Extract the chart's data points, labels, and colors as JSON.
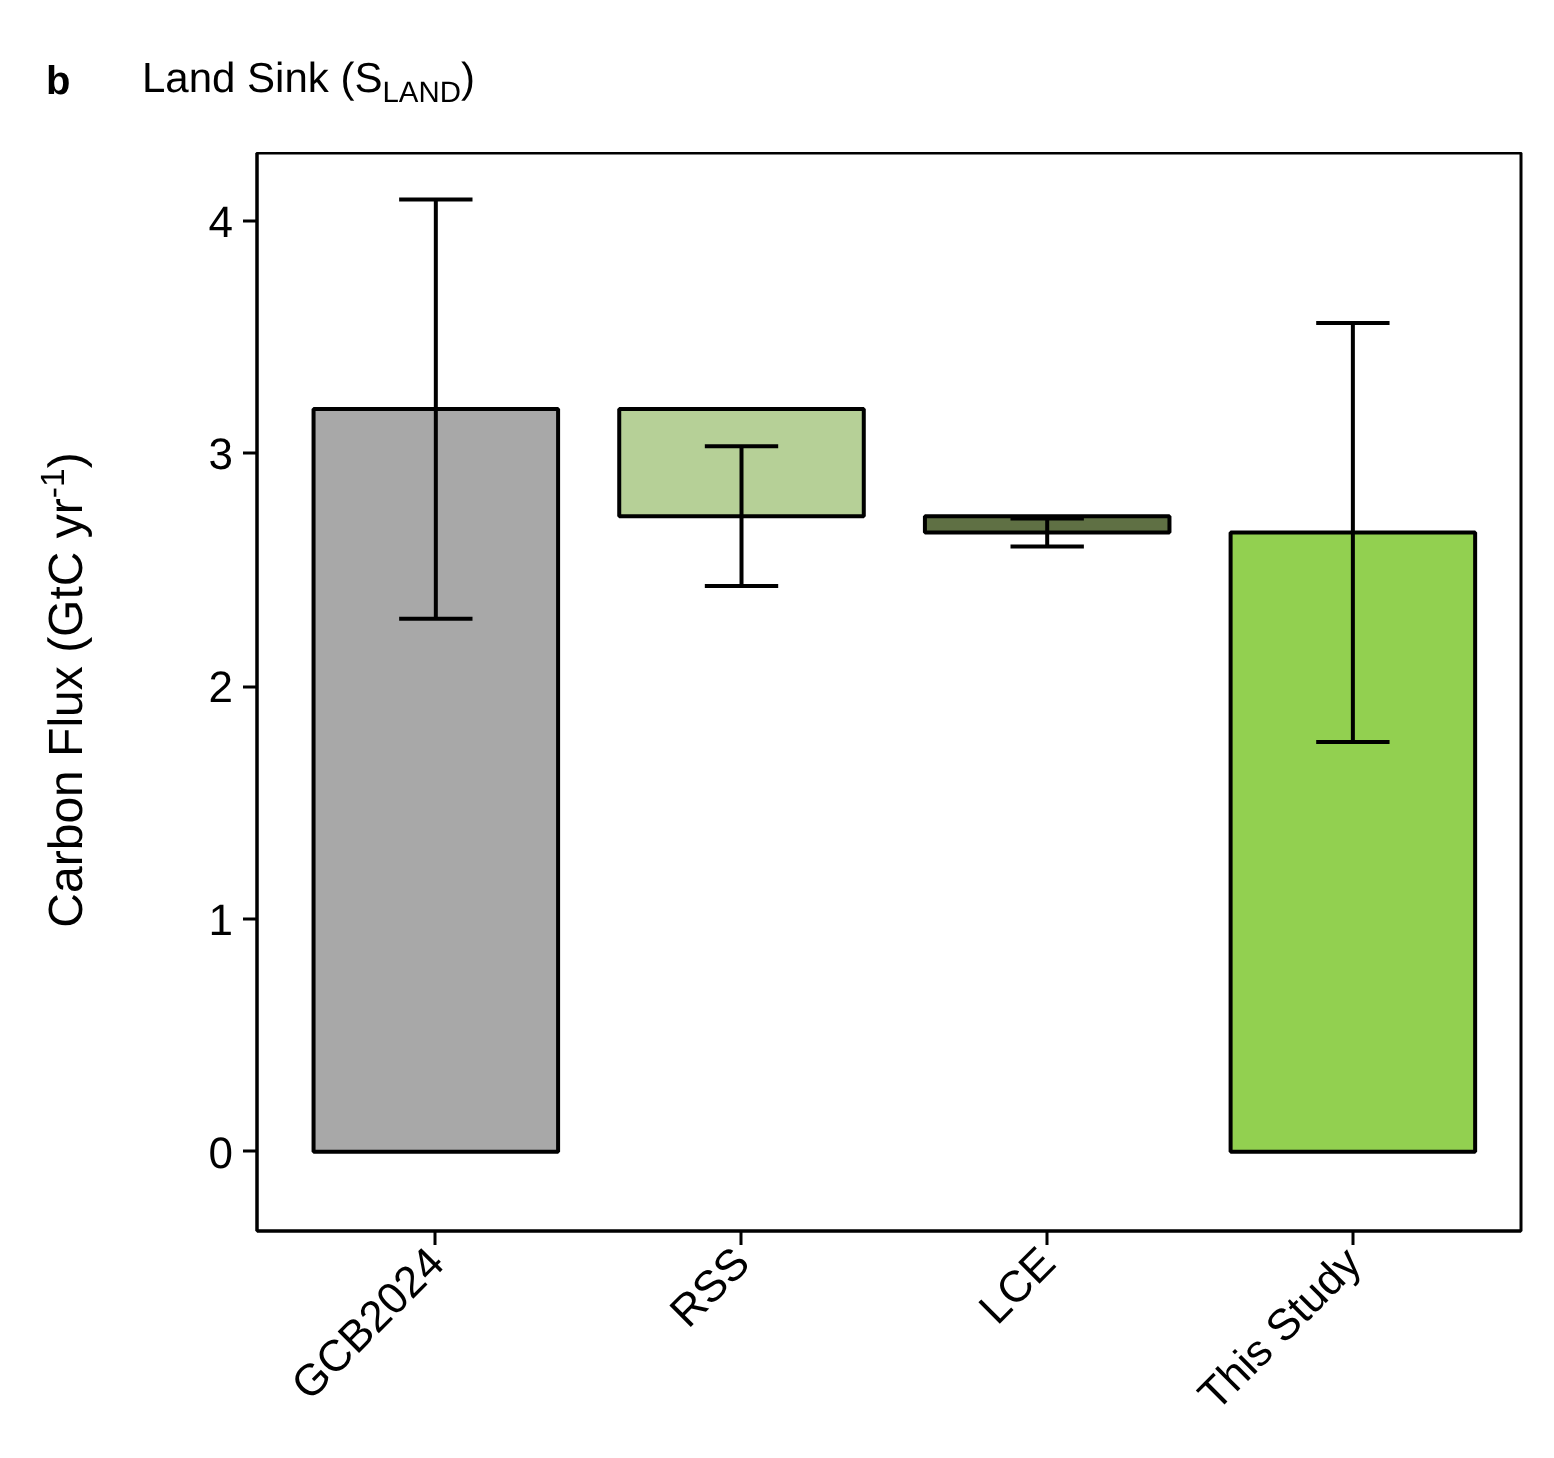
{
  "chart_data": {
    "type": "bar",
    "title": "Land Sink (S$_{LAND}$)",
    "ylabel": "Carbon Flux (GtC yr$^{-1}$)",
    "annotations": [
      "b"
    ],
    "categories": [
      "GCB2024",
      "RSS",
      "LCE",
      "This Study"
    ],
    "values": [
      3.19,
      -0.46,
      -0.07,
      2.66
    ],
    "base": [
      0,
      3.19,
      2.73,
      0
    ],
    "errors": [
      0.9,
      0.3,
      0.06,
      0.9
    ],
    "colors": [
      "#a8a8a8",
      "#b6d097",
      "#5f7044",
      "#92d050"
    ],
    "ylim": [
      -0.34,
      4.29
    ],
    "yticks": [
      0,
      1,
      2,
      3,
      4
    ],
    "grid": false
  }
}
